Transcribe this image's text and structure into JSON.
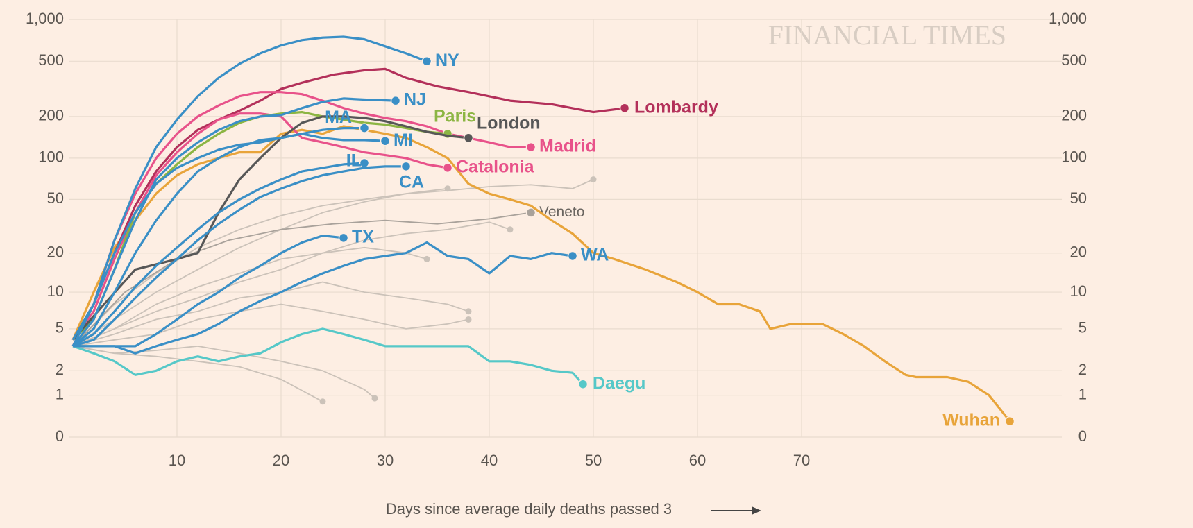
{
  "chart_data": {
    "type": "line",
    "watermark": "FINANCIAL TIMES",
    "x_label": "Days since average daily deaths passed 3",
    "yscale": "log1p",
    "xlim": [
      0,
      95
    ],
    "xticks": [
      10,
      20,
      30,
      40,
      50,
      60,
      70
    ],
    "ylim": [
      0,
      1000
    ],
    "yticks": [
      0,
      1,
      2,
      5,
      10,
      20,
      50,
      100,
      200,
      500,
      {
        "value": 1000,
        "label": "1,000"
      }
    ],
    "grid": true,
    "series": [
      {
        "color": "#cbc2b9",
        "x": [
          0,
          4,
          8,
          12,
          16,
          20,
          24,
          28,
          32,
          36,
          40,
          44,
          48,
          50
        ],
        "values": [
          3.5,
          8,
          14,
          22,
          30,
          38,
          45,
          50,
          55,
          58,
          62,
          64,
          60,
          70
        ]
      },
      {
        "color": "#cbc2b9",
        "x": [
          0,
          4,
          8,
          12,
          16,
          20,
          24,
          28,
          32,
          36
        ],
        "values": [
          3.5,
          6,
          10,
          15,
          22,
          30,
          40,
          48,
          55,
          60
        ]
      },
      {
        "color": "#cbc2b9",
        "x": [
          0,
          4,
          8,
          12,
          16,
          20,
          24,
          28,
          32,
          36,
          40,
          42
        ],
        "values": [
          3.5,
          5,
          7,
          9,
          12,
          15,
          20,
          25,
          28,
          30,
          34,
          30
        ]
      },
      {
        "color": "#cbc2b9",
        "x": [
          0,
          4,
          8,
          12,
          16,
          20,
          24,
          28,
          32,
          36,
          38
        ],
        "values": [
          3.5,
          4.5,
          6,
          7,
          9,
          10,
          12,
          10,
          9,
          8,
          7
        ]
      },
      {
        "color": "#cbc2b9",
        "x": [
          0,
          4,
          8,
          12,
          16,
          20,
          24,
          28,
          32,
          36,
          38
        ],
        "values": [
          3.5,
          4,
          4.5,
          6,
          7,
          8,
          7,
          6,
          5,
          5.5,
          6
        ]
      },
      {
        "color": "#cbc2b9",
        "x": [
          0,
          4,
          8,
          12,
          16,
          20,
          24
        ],
        "values": [
          3.5,
          3,
          2.8,
          2.5,
          2.2,
          1.6,
          0.8
        ]
      },
      {
        "color": "#cbc2b9",
        "x": [
          0,
          4,
          8,
          12,
          16,
          20,
          24,
          28,
          29
        ],
        "values": [
          3.5,
          3,
          3.2,
          3.5,
          3,
          2.5,
          2,
          1.2,
          0.9
        ]
      },
      {
        "color": "#cbc2b9",
        "x": [
          0,
          4,
          8,
          12,
          16,
          20,
          24,
          28,
          32,
          34
        ],
        "values": [
          3.5,
          5,
          8,
          11,
          14,
          18,
          20,
          22,
          20,
          18
        ]
      },
      {
        "name": "Veneto",
        "color": "#a9a29b",
        "x": [
          0,
          5,
          10,
          15,
          20,
          25,
          30,
          35,
          40,
          44
        ],
        "values": [
          3.5,
          10,
          18,
          25,
          30,
          33,
          35,
          33,
          36,
          40
        ]
      },
      {
        "name": "Wuhan",
        "color": "#e8a43a",
        "x": [
          0,
          2,
          4,
          6,
          8,
          10,
          12,
          14,
          16,
          18,
          20,
          22,
          24,
          26,
          28,
          30,
          32,
          34,
          36,
          38,
          40,
          42,
          44,
          46,
          48,
          50,
          52,
          55,
          58,
          60,
          62,
          64,
          66,
          67,
          69,
          72,
          74,
          76,
          78,
          80,
          81,
          84,
          86,
          88,
          90
        ],
        "values": [
          4,
          10,
          22,
          35,
          55,
          75,
          90,
          100,
          110,
          110,
          150,
          160,
          150,
          170,
          160,
          150,
          140,
          120,
          100,
          65,
          55,
          50,
          45,
          35,
          28,
          20,
          18,
          15,
          12,
          10,
          8,
          8,
          7,
          5,
          5.5,
          5.5,
          4.5,
          3.5,
          2.5,
          1.8,
          1.7,
          1.7,
          1.5,
          1.0,
          0.3
        ]
      },
      {
        "name": "Daegu",
        "color": "#56c8c8",
        "x": [
          0,
          2,
          4,
          6,
          8,
          10,
          12,
          14,
          16,
          18,
          20,
          22,
          24,
          26,
          28,
          30,
          32,
          34,
          36,
          38,
          40,
          42,
          44,
          46,
          48,
          49
        ],
        "values": [
          3.5,
          3,
          2.5,
          1.8,
          2,
          2.5,
          2.8,
          2.5,
          2.8,
          3,
          3.8,
          4.5,
          5,
          4.5,
          4,
          3.5,
          3.5,
          3.5,
          3.5,
          3.5,
          2.5,
          2.5,
          2.3,
          2,
          1.9,
          1.4
        ]
      },
      {
        "name": "Lombardy",
        "color": "#b3305a",
        "x": [
          0,
          2,
          4,
          6,
          8,
          10,
          12,
          14,
          16,
          18,
          20,
          22,
          25,
          28,
          30,
          32,
          35,
          38,
          42,
          46,
          50,
          53
        ],
        "values": [
          4,
          8,
          20,
          45,
          80,
          120,
          160,
          190,
          220,
          260,
          316,
          350,
          400,
          430,
          440,
          380,
          330,
          300,
          260,
          245,
          215,
          230
        ]
      },
      {
        "name": "Madrid",
        "color": "#e8528a",
        "x": [
          0,
          2,
          4,
          6,
          8,
          10,
          12,
          14,
          16,
          18,
          20,
          22,
          24,
          26,
          28,
          30,
          32,
          34,
          36,
          38,
          40,
          42,
          44
        ],
        "values": [
          3.5,
          8,
          25,
          55,
          100,
          150,
          200,
          240,
          280,
          300,
          300,
          290,
          260,
          230,
          210,
          195,
          185,
          170,
          150,
          140,
          130,
          120,
          120
        ]
      },
      {
        "name": "Catalonia",
        "color": "#e8528a",
        "x": [
          0,
          2,
          4,
          6,
          8,
          10,
          12,
          14,
          16,
          18,
          20,
          22,
          24,
          26,
          28,
          30,
          32,
          34,
          36
        ],
        "values": [
          4,
          7,
          18,
          40,
          75,
          110,
          150,
          190,
          210,
          210,
          200,
          140,
          130,
          120,
          110,
          105,
          100,
          90,
          85
        ]
      },
      {
        "name": "Paris",
        "color": "#8cb543",
        "x": [
          0,
          2,
          4,
          6,
          8,
          10,
          12,
          14,
          16,
          18,
          20,
          22,
          24,
          26,
          28,
          30,
          32,
          34,
          36
        ],
        "values": [
          4,
          6,
          15,
          40,
          65,
          90,
          120,
          150,
          180,
          200,
          210,
          215,
          200,
          190,
          180,
          175,
          165,
          155,
          150
        ]
      },
      {
        "name": "London",
        "color": "#575757",
        "x": [
          0,
          3,
          6,
          10,
          12,
          14,
          16,
          18,
          20,
          22,
          24,
          26,
          28,
          30,
          32,
          34,
          36,
          38
        ],
        "values": [
          4,
          8,
          15,
          18,
          20,
          40,
          70,
          100,
          140,
          180,
          200,
          200,
          195,
          185,
          170,
          155,
          145,
          140
        ]
      },
      {
        "name": "NY",
        "color": "#3a8fc6",
        "x": [
          0,
          2,
          4,
          6,
          8,
          10,
          12,
          14,
          16,
          18,
          20,
          22,
          24,
          26,
          28,
          30,
          32,
          34
        ],
        "values": [
          3.5,
          8,
          25,
          60,
          120,
          190,
          280,
          380,
          480,
          570,
          650,
          710,
          740,
          750,
          720,
          640,
          570,
          500
        ]
      },
      {
        "name": "NJ",
        "color": "#3a8fc6",
        "x": [
          0,
          2,
          4,
          6,
          8,
          10,
          12,
          14,
          16,
          18,
          20,
          22,
          24,
          26,
          28,
          31
        ],
        "values": [
          3.5,
          6,
          15,
          35,
          70,
          100,
          130,
          160,
          185,
          200,
          205,
          230,
          255,
          270,
          265,
          260
        ]
      },
      {
        "name": "MA",
        "color": "#3a8fc6",
        "x": [
          0,
          2,
          4,
          6,
          8,
          10,
          12,
          14,
          16,
          18,
          20,
          22,
          24,
          26,
          28
        ],
        "values": [
          3.5,
          5,
          10,
          20,
          35,
          55,
          80,
          100,
          120,
          135,
          140,
          150,
          160,
          165,
          165
        ]
      },
      {
        "name": "MI",
        "color": "#3a8fc6",
        "x": [
          0,
          2,
          4,
          6,
          8,
          10,
          12,
          14,
          16,
          18,
          20,
          22,
          24,
          26,
          28,
          30
        ],
        "values": [
          4,
          8,
          20,
          40,
          65,
          85,
          100,
          115,
          125,
          130,
          140,
          150,
          140,
          135,
          135,
          133
        ]
      },
      {
        "name": "IL",
        "color": "#3a8fc6",
        "x": [
          0,
          2,
          4,
          6,
          8,
          10,
          12,
          14,
          16,
          18,
          20,
          22,
          24,
          26,
          28
        ],
        "values": [
          3.5,
          4.5,
          7,
          11,
          16,
          22,
          30,
          40,
          50,
          60,
          70,
          80,
          85,
          90,
          92
        ]
      },
      {
        "name": "CA",
        "color": "#3a8fc6",
        "x": [
          0,
          2,
          4,
          6,
          8,
          10,
          12,
          14,
          16,
          18,
          20,
          22,
          24,
          26,
          28,
          30,
          32
        ],
        "values": [
          3.5,
          4,
          6,
          9,
          13,
          18,
          25,
          33,
          42,
          52,
          60,
          68,
          75,
          80,
          85,
          87,
          87
        ]
      },
      {
        "name": "TX",
        "color": "#3a8fc6",
        "x": [
          0,
          2,
          4,
          6,
          8,
          10,
          12,
          14,
          16,
          18,
          20,
          22,
          24,
          26
        ],
        "values": [
          3.5,
          3.5,
          3.5,
          3.5,
          4.5,
          6,
          8,
          10,
          13,
          16,
          20,
          24,
          27,
          26
        ]
      },
      {
        "name": "WA",
        "color": "#3a8fc6",
        "x": [
          0,
          2,
          4,
          6,
          8,
          10,
          12,
          14,
          16,
          18,
          20,
          22,
          24,
          26,
          28,
          30,
          32,
          34,
          36,
          38,
          40,
          42,
          44,
          46,
          48
        ],
        "values": [
          3.5,
          3.5,
          3.5,
          3,
          3.5,
          4,
          4.5,
          5.5,
          7,
          8.5,
          10,
          12,
          14,
          16,
          18,
          19,
          20,
          24,
          19,
          18,
          14,
          19,
          18,
          20,
          19
        ]
      }
    ]
  }
}
